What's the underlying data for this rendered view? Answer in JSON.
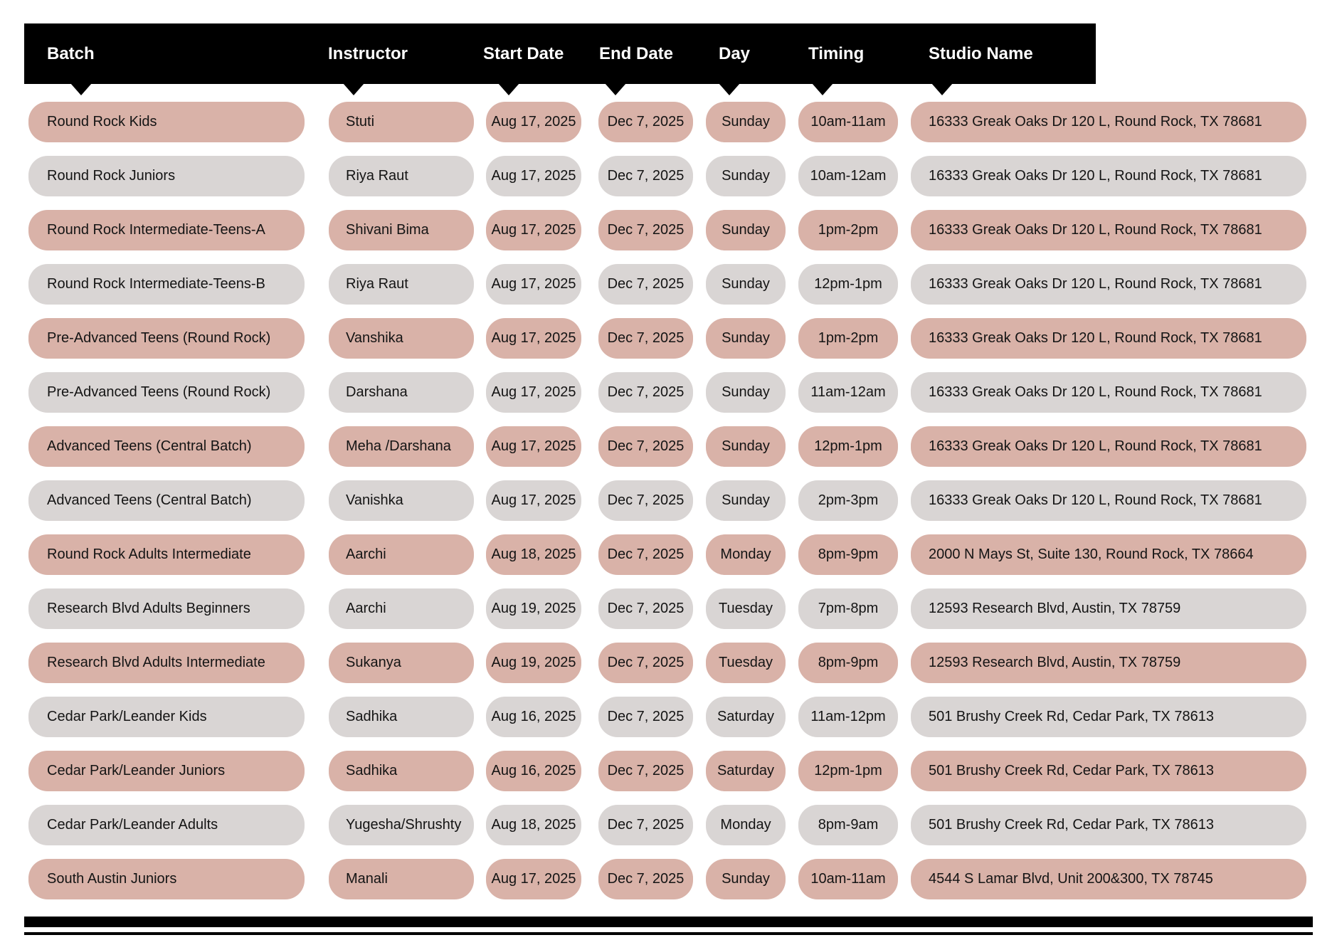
{
  "table": {
    "columns": [
      {
        "key": "batch",
        "label": "Batch"
      },
      {
        "key": "instructor",
        "label": "Instructor"
      },
      {
        "key": "start_date",
        "label": "Start Date"
      },
      {
        "key": "end_date",
        "label": "End Date"
      },
      {
        "key": "day",
        "label": "Day"
      },
      {
        "key": "timing",
        "label": "Timing"
      },
      {
        "key": "studio",
        "label": "Studio Name"
      }
    ],
    "rows": [
      {
        "batch": "Round Rock Kids",
        "instructor": "Stuti",
        "start_date": "Aug 17, 2025",
        "end_date": "Dec 7, 2025",
        "day": "Sunday",
        "timing": "10am-11am",
        "studio": "16333 Greak Oaks Dr 120 L, Round Rock, TX 78681"
      },
      {
        "batch": "Round Rock Juniors",
        "instructor": "Riya Raut",
        "start_date": "Aug 17, 2025",
        "end_date": "Dec 7, 2025",
        "day": "Sunday",
        "timing": "10am-12am",
        "studio": "16333 Greak Oaks Dr 120 L, Round Rock, TX 78681"
      },
      {
        "batch": "Round Rock Intermediate-Teens-A",
        "instructor": "Shivani Bima",
        "start_date": "Aug 17, 2025",
        "end_date": "Dec 7, 2025",
        "day": "Sunday",
        "timing": "1pm-2pm",
        "studio": "16333 Greak Oaks Dr 120 L, Round Rock, TX 78681"
      },
      {
        "batch": "Round Rock Intermediate-Teens-B",
        "instructor": "Riya Raut",
        "start_date": "Aug 17, 2025",
        "end_date": "Dec 7, 2025",
        "day": "Sunday",
        "timing": "12pm-1pm",
        "studio": "16333 Greak Oaks Dr 120 L, Round Rock, TX 78681"
      },
      {
        "batch": "Pre-Advanced Teens (Round Rock)",
        "instructor": "Vanshika",
        "start_date": "Aug 17, 2025",
        "end_date": "Dec 7, 2025",
        "day": "Sunday",
        "timing": "1pm-2pm",
        "studio": "16333 Greak Oaks Dr 120 L, Round Rock, TX 78681"
      },
      {
        "batch": "Pre-Advanced Teens (Round Rock)",
        "instructor": "Darshana",
        "start_date": "Aug 17, 2025",
        "end_date": "Dec 7, 2025",
        "day": "Sunday",
        "timing": "11am-12am",
        "studio": "16333 Greak Oaks Dr 120 L, Round Rock, TX 78681"
      },
      {
        "batch": "Advanced Teens (Central Batch)",
        "instructor": "Meha /Darshana",
        "start_date": "Aug 17, 2025",
        "end_date": "Dec 7, 2025",
        "day": "Sunday",
        "timing": "12pm-1pm",
        "studio": "16333 Greak Oaks Dr 120 L, Round Rock, TX 78681"
      },
      {
        "batch": "Advanced Teens (Central Batch)",
        "instructor": "Vanishka",
        "start_date": "Aug 17, 2025",
        "end_date": "Dec 7, 2025",
        "day": "Sunday",
        "timing": "2pm-3pm",
        "studio": "16333 Greak Oaks Dr 120 L, Round Rock, TX 78681"
      },
      {
        "batch": "Round Rock Adults Intermediate",
        "instructor": "Aarchi",
        "start_date": "Aug 18, 2025",
        "end_date": "Dec 7, 2025",
        "day": "Monday",
        "timing": "8pm-9pm",
        "studio": "2000 N Mays St, Suite 130, Round Rock, TX 78664"
      },
      {
        "batch": "Research Blvd Adults Beginners",
        "instructor": "Aarchi",
        "start_date": "Aug 19, 2025",
        "end_date": "Dec 7, 2025",
        "day": "Tuesday",
        "timing": "7pm-8pm",
        "studio": "12593 Research Blvd, Austin, TX 78759"
      },
      {
        "batch": "Research Blvd Adults Intermediate",
        "instructor": "Sukanya",
        "start_date": "Aug 19, 2025",
        "end_date": "Dec 7, 2025",
        "day": "Tuesday",
        "timing": "8pm-9pm",
        "studio": "12593 Research Blvd, Austin, TX 78759"
      },
      {
        "batch": "Cedar Park/Leander Kids",
        "instructor": "Sadhika",
        "start_date": "Aug 16, 2025",
        "end_date": "Dec 7, 2025",
        "day": "Saturday",
        "timing": "11am-12pm",
        "studio": "501 Brushy Creek Rd, Cedar Park, TX 78613"
      },
      {
        "batch": "Cedar Park/Leander Juniors",
        "instructor": "Sadhika",
        "start_date": "Aug 16, 2025",
        "end_date": "Dec 7, 2025",
        "day": "Saturday",
        "timing": "12pm-1pm",
        "studio": "501 Brushy Creek Rd, Cedar Park, TX 78613"
      },
      {
        "batch": "Cedar Park/Leander Adults",
        "instructor": "Yugesha/Shrushty",
        "start_date": "Aug 18, 2025",
        "end_date": "Dec 7, 2025",
        "day": "Monday",
        "timing": "8pm-9am",
        "studio": "501 Brushy Creek Rd, Cedar Park, TX 78613"
      },
      {
        "batch": "South Austin Juniors",
        "instructor": "Manali",
        "start_date": "Aug 17, 2025",
        "end_date": "Dec 7, 2025",
        "day": "Sunday",
        "timing": "10am-11am",
        "studio": "4544 S Lamar Blvd, Unit 200&300, TX 78745"
      }
    ],
    "colors": {
      "header_bg": "#000000",
      "header_text": "#ffffff",
      "row_alt_pink": "#d9b2a8",
      "row_alt_gray": "#d9d5d4",
      "cell_text": "#141414"
    }
  }
}
